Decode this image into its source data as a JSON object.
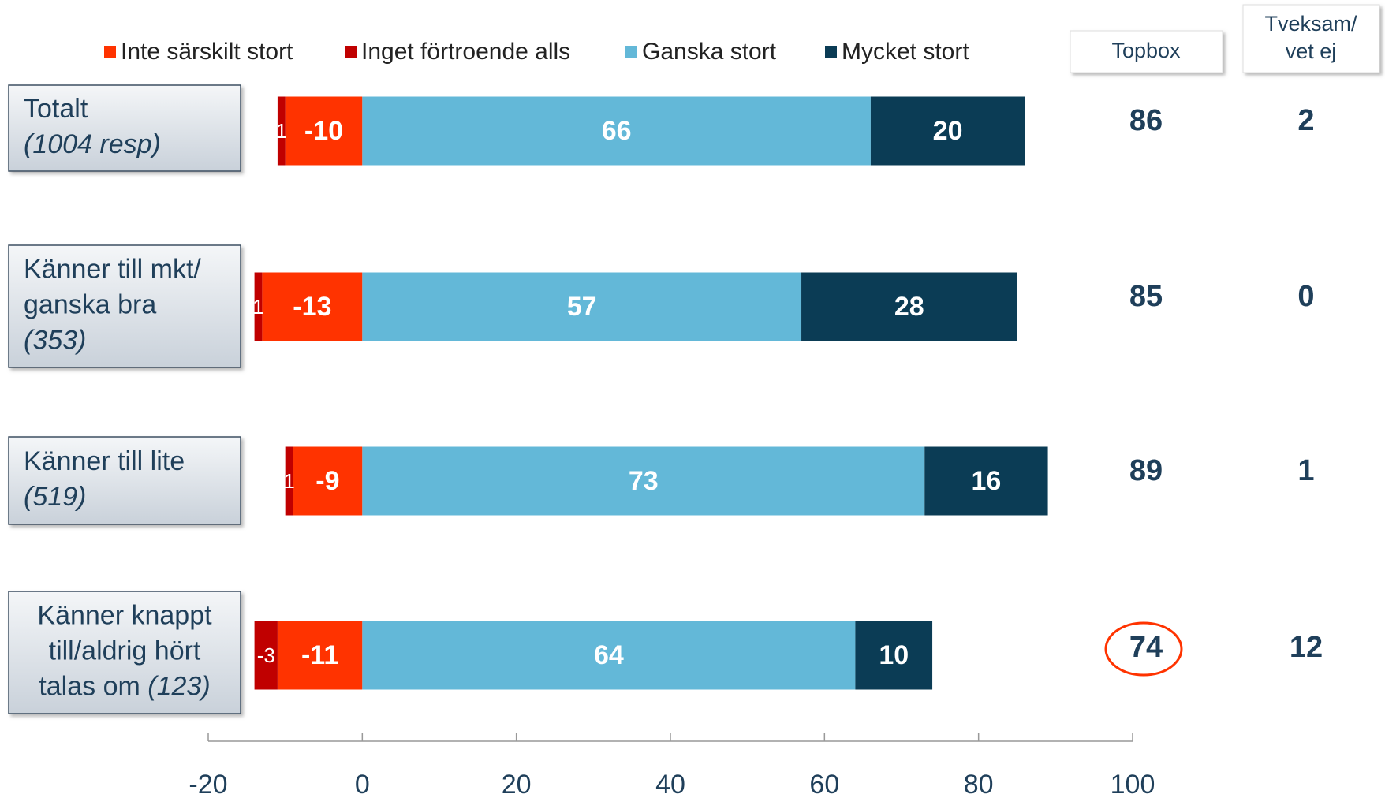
{
  "chart_data": {
    "type": "diverging-bar",
    "categories": [
      {
        "lines": [
          "Totalt"
        ],
        "note": "(1004 resp)"
      },
      {
        "lines": [
          "Känner till mkt/",
          "ganska bra"
        ],
        "note": "(353)"
      },
      {
        "lines": [
          "Känner till lite"
        ],
        "note": "(519)"
      },
      {
        "lines": [
          "Känner knappt",
          "till/aldrig hört",
          "talas om"
        ],
        "note": "(123)"
      }
    ],
    "series": [
      {
        "name": "Inte särskilt stort",
        "color": "#ff3300",
        "values": [
          -10,
          -13,
          -9,
          -11
        ]
      },
      {
        "name": "Inget förtroende alls",
        "color": "#c00000",
        "values": [
          -1,
          -1,
          -1,
          -3
        ],
        "value_labels": [
          "1",
          "1",
          "1",
          "-3"
        ]
      },
      {
        "name": "Ganska stort",
        "color": "#63b8d8",
        "values": [
          66,
          57,
          73,
          64
        ]
      },
      {
        "name": "Mycket stort",
        "color": "#0b3c55",
        "values": [
          20,
          28,
          16,
          10
        ]
      }
    ],
    "topbox": {
      "title": "Topbox",
      "values": [
        86,
        85,
        89,
        74
      ],
      "highlight_index": 3
    },
    "unsure": {
      "title": [
        "Tveksam/",
        "vet ej"
      ],
      "values": [
        2,
        0,
        1,
        12
      ]
    },
    "xlim": [
      -20,
      100
    ],
    "xticks": [
      -20,
      0,
      20,
      40,
      60,
      80,
      100
    ]
  }
}
